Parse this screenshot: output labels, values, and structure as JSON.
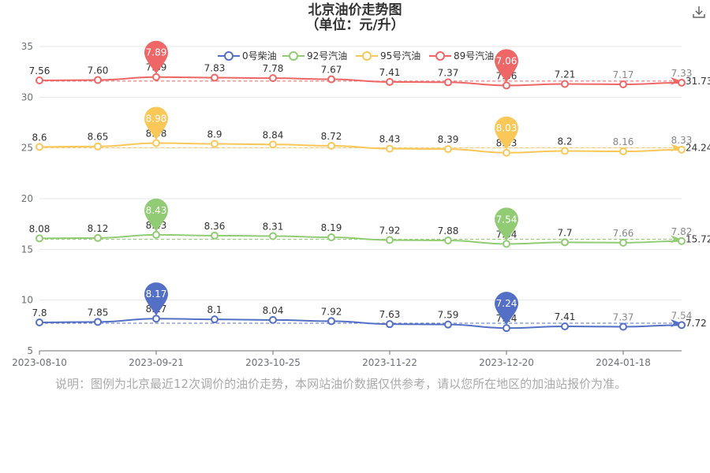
{
  "title_line1": "北京油价走势图",
  "title_line2": "（单位：元/升）",
  "note": "说明：图例为北京最近12次调价的油价走势，本网站油价数据仅供参考，请以您所在地区的加油站报价为准。",
  "chart_data": {
    "type": "line",
    "x_tick_labels": [
      "2023-08-10",
      "2023-09-21",
      "2023-10-25",
      "2023-11-22",
      "2023-12-20",
      "2024-01-18"
    ],
    "ylim": [
      5,
      35
    ],
    "y_ticks": [
      5,
      10,
      15,
      20,
      25,
      30,
      35
    ],
    "grid": true,
    "legend_position": "top-center",
    "series": [
      {
        "name": "0号柴油",
        "color": "#5470c6",
        "labels": [
          "7.8",
          "7.85",
          "8.17",
          "8.1",
          "8.04",
          "7.92",
          "7.63",
          "7.59",
          "7.24",
          "7.41",
          "7.37",
          "7.54"
        ],
        "max_label": "8.17",
        "min_label": "7.24",
        "avg_label": "7.72"
      },
      {
        "name": "92号汽油",
        "color": "#91cc75",
        "labels": [
          "8.08",
          "8.12",
          "8.43",
          "8.36",
          "8.31",
          "8.19",
          "7.92",
          "7.88",
          "7.54",
          "7.7",
          "7.66",
          "7.82"
        ],
        "max_label": "8.43",
        "min_label": "7.54",
        "avg_label": "15.72"
      },
      {
        "name": "95号汽油",
        "color": "#fac858",
        "labels": [
          "8.6",
          "8.65",
          "8.98",
          "8.9",
          "8.84",
          "8.72",
          "8.43",
          "8.39",
          "8.03",
          "8.2",
          "8.16",
          "8.33"
        ],
        "max_label": "8.98",
        "min_label": "8.03",
        "avg_label": "24.24"
      },
      {
        "name": "89号汽油",
        "color": "#ee6666",
        "labels": [
          "7.56",
          "7.60",
          "7.89",
          "7.83",
          "7.78",
          "7.67",
          "7.41",
          "7.37",
          "7.06",
          "7.21",
          "7.17",
          "7.33"
        ],
        "max_label": "7.89",
        "min_label": "7.06",
        "avg_label": "31.73"
      }
    ]
  }
}
